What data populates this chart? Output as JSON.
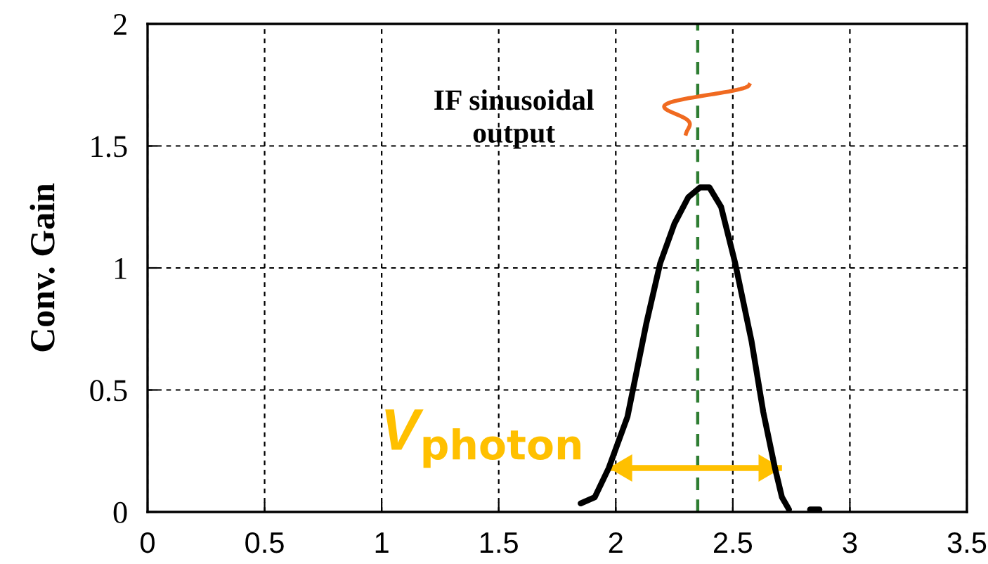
{
  "chart_data": {
    "type": "line",
    "ylabel": "Conv. Gain",
    "xlim": [
      0,
      3.5
    ],
    "xticks": [
      0,
      0.5,
      1,
      1.5,
      2,
      2.5,
      3,
      3.5
    ],
    "ylim": [
      0,
      2
    ],
    "yticks": [
      0,
      0.5,
      1,
      1.5,
      2
    ],
    "grid": true,
    "marker": "none",
    "line_style": "solid",
    "series": [
      {
        "color": "#000000",
        "x": [
          1.85,
          1.91,
          1.97,
          2.05,
          2.13,
          2.19,
          2.25,
          2.31,
          2.36,
          2.4,
          2.45,
          2.51,
          2.58,
          2.63,
          2.68,
          2.71,
          2.74,
          2.78,
          2.83,
          2.87
        ],
        "values": [
          0.035,
          0.06,
          0.18,
          0.39,
          0.77,
          1.02,
          1.18,
          1.29,
          1.33,
          1.33,
          1.25,
          1.02,
          0.7,
          0.41,
          0.18,
          0.06,
          0.01,
          null,
          0.01,
          0.01
        ]
      },
      {
        "type": "line",
        "color": "#ffc000",
        "x": [
          1.97,
          2.71
        ],
        "values": [
          0.18,
          0.18
        ]
      }
    ],
    "ref_lines": [
      {
        "axis": "x",
        "value": 2.35,
        "color": "#2e7d32",
        "line_style": "dashed"
      }
    ],
    "annotations": [
      "IF sinusoidal\noutput",
      {
        "text": "V$_{photon}$",
        "x": 1.97,
        "y": 0.18
      }
    ]
  }
}
